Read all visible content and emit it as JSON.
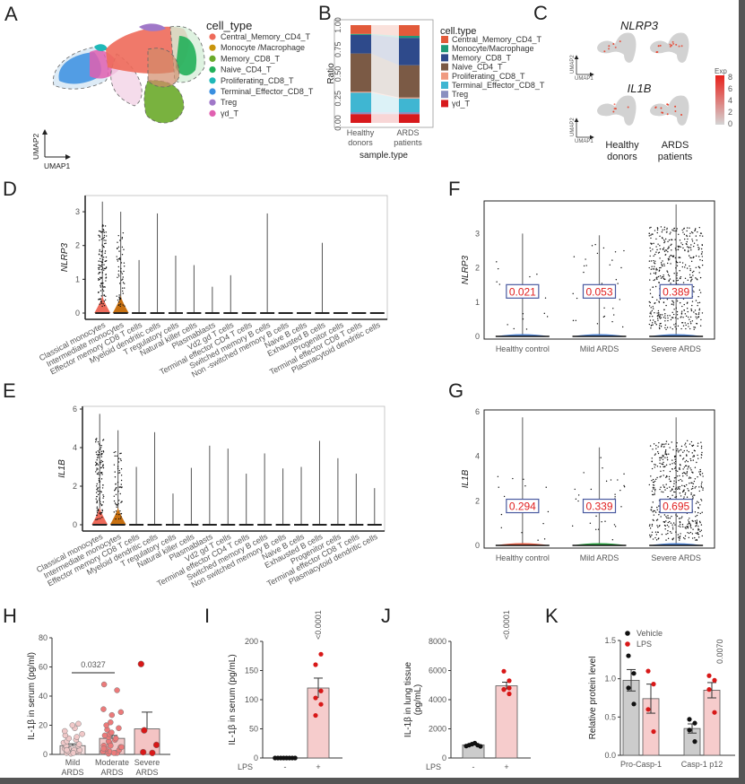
{
  "figure": {
    "panel_labels": [
      "A",
      "B",
      "C",
      "D",
      "E",
      "F",
      "G",
      "H",
      "I",
      "J",
      "K"
    ]
  },
  "chart_data": [
    {
      "id": "A",
      "type": "scatter",
      "title": "",
      "xlabel": "UMAP1",
      "ylabel": "UMAP2",
      "legend_title": "cell_type",
      "legend_position": "right",
      "legend": [
        {
          "name": "Central_Memory_CD4_T",
          "color": "#ee6a5a"
        },
        {
          "name": "Monocyte /Macrophage",
          "color": "#c9950c"
        },
        {
          "name": "Memory_CD8_T",
          "color": "#6aaa2a"
        },
        {
          "name": "Naive_CD4_T",
          "color": "#22b05a"
        },
        {
          "name": "Proliferating_CD8_T",
          "color": "#1fb8b8"
        },
        {
          "name": "Terminal_Effector_CD8_T",
          "color": "#3a8fe0"
        },
        {
          "name": "Treg",
          "color": "#a078c8"
        },
        {
          "name": "γd_T",
          "color": "#e060b0"
        }
      ]
    },
    {
      "id": "B",
      "type": "bar",
      "stacked": true,
      "title": "",
      "xlabel": "sample.type",
      "ylabel": "Ratio",
      "ylim": [
        0,
        1
      ],
      "yticks": [
        "0.00",
        "0.25",
        "0.50",
        "0.75",
        "1.00"
      ],
      "categories": [
        "Healthy\ndonors",
        "ARDS\npatients"
      ],
      "category_lines": [
        [
          "Healthy",
          "donors"
        ],
        [
          "ARDS",
          "patients"
        ]
      ],
      "legend_title": "cell.type",
      "legend_position": "right",
      "series": [
        {
          "name": "γd_T",
          "color": "#d7191c",
          "values": [
            0.09,
            0.09
          ]
        },
        {
          "name": "Treg",
          "color": "#8a8fc0",
          "values": [
            0.02,
            0.02
          ]
        },
        {
          "name": "Terminal_Effector_CD8_T",
          "color": "#3fb6d2",
          "values": [
            0.2,
            0.14
          ]
        },
        {
          "name": "Proliferating_CD8_T",
          "color": "#f09a80",
          "values": [
            0.01,
            0.01
          ]
        },
        {
          "name": "Naive_CD4_T",
          "color": "#7b5a45",
          "values": [
            0.39,
            0.33
          ]
        },
        {
          "name": "Memory_CD8_T",
          "color": "#2e4a8b",
          "values": [
            0.19,
            0.28
          ]
        },
        {
          "name": "Monocyte/Macrophage",
          "color": "#1f9a78",
          "values": [
            0.01,
            0.02
          ]
        },
        {
          "name": "Central_Memory_CD4_T",
          "color": "#e25a3a",
          "values": [
            0.09,
            0.11
          ]
        }
      ],
      "legend_order": [
        "Central_Memory_CD4_T",
        "Monocyte/Macrophage",
        "Memory_CD8_T",
        "Naive_CD4_T",
        "Proliferating_CD8_T",
        "Terminal_Effector_CD8_T",
        "Treg",
        "γd_T"
      ]
    },
    {
      "id": "C",
      "type": "scatter",
      "title": "",
      "genes": [
        "NLRP3",
        "IL1B"
      ],
      "columns": [
        "Healthy donors",
        "ARDS patients"
      ],
      "column_lines": [
        [
          "Healthy",
          "donors"
        ],
        [
          "ARDS",
          "patients"
        ]
      ],
      "xlabel": "UMAP1",
      "ylabel": "UMAP2",
      "colorbar": {
        "title": "Exp",
        "ticks": [
          "0",
          "2",
          "4",
          "6",
          "8"
        ],
        "range": [
          0,
          8
        ],
        "low_color": "#d4d4d4",
        "high_color": "#e8201a"
      }
    },
    {
      "id": "D",
      "type": "violin",
      "ylabel": "NLRP3",
      "ylim": [
        0,
        3.4
      ],
      "yticks": [
        "0",
        "1",
        "2",
        "3"
      ],
      "categories": [
        "Classical monocytes",
        "Intermediate monocytes",
        "Effector memory CD8 T cells",
        "Myeloid dendritic cells",
        "T regulatory cells",
        "Natural killer cells",
        "Plasmablasts",
        "Vd2 gd T cells",
        "Terminal effector CD4 T cells",
        "Switched memory B cells",
        "Non -switched memory B cells",
        "Naive B cells",
        "Exhausted B cells",
        "Progenitor cells",
        "Terminal effector CD8 T cells",
        "Plasmacytoid dendritic cells"
      ],
      "max_values": [
        3.3,
        3.0,
        1.57,
        2.95,
        1.7,
        1.42,
        0.78,
        1.12,
        0,
        2.95,
        0,
        0,
        2.08,
        0,
        0,
        0
      ],
      "colors": {
        "Classical monocytes": "#ee6a5a",
        "Intermediate monocytes": "#c87010"
      }
    },
    {
      "id": "E",
      "type": "violin",
      "ylabel": "IL1B",
      "ylim": [
        0,
        6
      ],
      "yticks": [
        "0",
        "2",
        "4",
        "6"
      ],
      "categories": [
        "Classical monocytes",
        "Intermediate monocytes",
        "Effector memory CD8 T cells",
        "Myeloid dendritic cells",
        "T regulatory cells",
        "Natural killer cells",
        "Plasmablasts",
        "Vd2 gd T cells",
        "Terminal effector CD4 T cells",
        "Switched memory B cells",
        "Non switched memory B cells",
        "Naive B cells",
        "Exhausted B cells",
        "Progenitor cells",
        "Terminal effector CD8 T cells",
        "Plasmacytoid dendritic cells"
      ],
      "max_values": [
        5.75,
        4.9,
        3.0,
        4.8,
        1.62,
        2.95,
        4.1,
        3.95,
        2.65,
        3.7,
        2.92,
        3.0,
        4.35,
        3.45,
        2.65,
        1.9
      ],
      "colors": {
        "Classical monocytes": "#ee6a5a",
        "Intermediate monocytes": "#c87010"
      }
    },
    {
      "id": "F",
      "type": "violin",
      "ylabel": "NLRP3",
      "ylim": [
        0,
        3.9
      ],
      "yticks": [
        "0",
        "1",
        "2",
        "3"
      ],
      "categories": [
        "Healthy control",
        "Mild ARDS",
        "Severe ARDS"
      ],
      "max_values": [
        3.0,
        2.95,
        3.85
      ],
      "annotations": [
        "0.021",
        "0.053",
        "0.389"
      ],
      "annotation_y": 1.3,
      "violin_color": "#4a7fd0"
    },
    {
      "id": "G",
      "type": "violin",
      "ylabel": "IL1B",
      "ylim": [
        0,
        6
      ],
      "yticks": [
        "0",
        "2",
        "4",
        "6"
      ],
      "categories": [
        "Healthy control",
        "Mild ARDS",
        "Severe ARDS"
      ],
      "max_values": [
        5.75,
        4.4,
        5.75
      ],
      "annotations": [
        "0.294",
        "0.339",
        "0.695"
      ],
      "annotation_y": 1.75,
      "violin_colors": [
        "#e05a40",
        "#2aa040",
        "#4a7fd0"
      ]
    },
    {
      "id": "H",
      "type": "bar",
      "ylabel": "IL-1β in serum (pg/ml)",
      "ylim": [
        0,
        80
      ],
      "yticks": [
        "0",
        "20",
        "40",
        "60",
        "80"
      ],
      "categories": [
        "Mild ARDS",
        "Moderate ARDS",
        "Severe ARDS"
      ],
      "category_lines": [
        [
          "Mild",
          "ARDS"
        ],
        [
          "Moderate",
          "ARDS"
        ],
        [
          "Severe",
          "ARDS"
        ]
      ],
      "values": [
        6,
        11,
        17.5
      ],
      "errors": [
        1.2,
        2.0,
        11.5
      ],
      "bar_colors": [
        "#f4dede",
        "#f2c8c8",
        "#f4c4c4"
      ],
      "point_colors": [
        "#f0c8c8",
        "#ec7a7a",
        "#d81818"
      ],
      "points": [
        [
          0.5,
          1,
          1.5,
          2,
          2.5,
          3,
          3,
          4,
          4,
          5,
          5,
          6,
          6,
          7,
          8,
          9,
          10,
          11,
          12,
          13,
          14,
          16,
          18,
          20,
          21,
          1,
          2,
          3
        ],
        [
          0.5,
          1,
          1,
          2,
          2,
          3,
          3,
          4,
          5,
          5,
          6,
          7,
          8,
          9,
          10,
          11,
          12,
          13,
          14,
          15,
          17,
          18,
          20,
          22,
          27,
          29,
          31,
          44,
          48,
          1,
          2,
          4,
          6
        ],
        [
          1,
          1.5,
          6.5,
          16.5,
          62
        ]
      ],
      "significance": [
        {
          "between": [
            0,
            1
          ],
          "label": "0.0327"
        }
      ]
    },
    {
      "id": "I",
      "type": "bar",
      "ylabel": "IL-1β in serum (pg/mL)",
      "ylim": [
        0,
        200
      ],
      "yticks": [
        "0",
        "50",
        "100",
        "150",
        "200"
      ],
      "row_label": "LPS",
      "categories": [
        "-",
        "+"
      ],
      "values": [
        0,
        120
      ],
      "errors": [
        0,
        17
      ],
      "bar_colors": [
        "#d8d8d8",
        "#f6cccc"
      ],
      "point_colors": [
        "#111111",
        "#d81818"
      ],
      "points": [
        [
          0,
          0,
          0,
          0,
          0,
          0,
          0,
          0
        ],
        [
          73,
          92,
          103,
          115,
          160,
          178
        ]
      ],
      "significance": [
        {
          "bar": 1,
          "label": "<0.0001"
        }
      ]
    },
    {
      "id": "J",
      "type": "bar",
      "ylabel": "IL-1β in lung tissue (pg/mL)",
      "ylabel_lines": [
        "IL-1β in lung tissue",
        "(pg/mL)"
      ],
      "ylim": [
        0,
        8000
      ],
      "yticks": [
        "0",
        "2000",
        "4000",
        "6000",
        "8000"
      ],
      "row_label": "LPS",
      "categories": [
        "-",
        "+"
      ],
      "values": [
        900,
        4950
      ],
      "errors": [
        80,
        250
      ],
      "bar_colors": [
        "#cccccc",
        "#f6cccc"
      ],
      "point_colors": [
        "#111111",
        "#d81818"
      ],
      "points": [
        [
          820,
          880,
          950,
          1020,
          880,
          800
        ],
        [
          4700,
          4800,
          4700,
          5300,
          5950,
          4400
        ]
      ],
      "significance": [
        {
          "bar": 1,
          "label": "<0.0001"
        }
      ]
    },
    {
      "id": "K",
      "type": "bar",
      "ylabel": "Relative protein level",
      "ylim": [
        0,
        1.5
      ],
      "yticks": [
        "0.0",
        "0.5",
        "1.0",
        "1.5"
      ],
      "categories": [
        "Pro-Casp-1",
        "Casp-1 p12"
      ],
      "legend_position": "top-left",
      "series": [
        {
          "name": "Vehicle",
          "color": "#111111",
          "bar_color": "#cccccc",
          "values": [
            0.98,
            0.35
          ],
          "errors": [
            0.14,
            0.06
          ],
          "points": [
            [
              1.3,
              1.07,
              0.88,
              0.67
            ],
            [
              0.47,
              0.42,
              0.33,
              0.18
            ]
          ]
        },
        {
          "name": "LPS",
          "color": "#d81818",
          "bar_color": "#f6cccc",
          "values": [
            0.74,
            0.85
          ],
          "errors": [
            0.19,
            0.1
          ],
          "points": [
            [
              1.1,
              0.93,
              0.6,
              0.31
            ],
            [
              1.04,
              0.98,
              0.86,
              0.56
            ]
          ]
        }
      ],
      "significance": [
        {
          "group": 1,
          "series": 1,
          "label": "0.0070"
        }
      ]
    }
  ]
}
